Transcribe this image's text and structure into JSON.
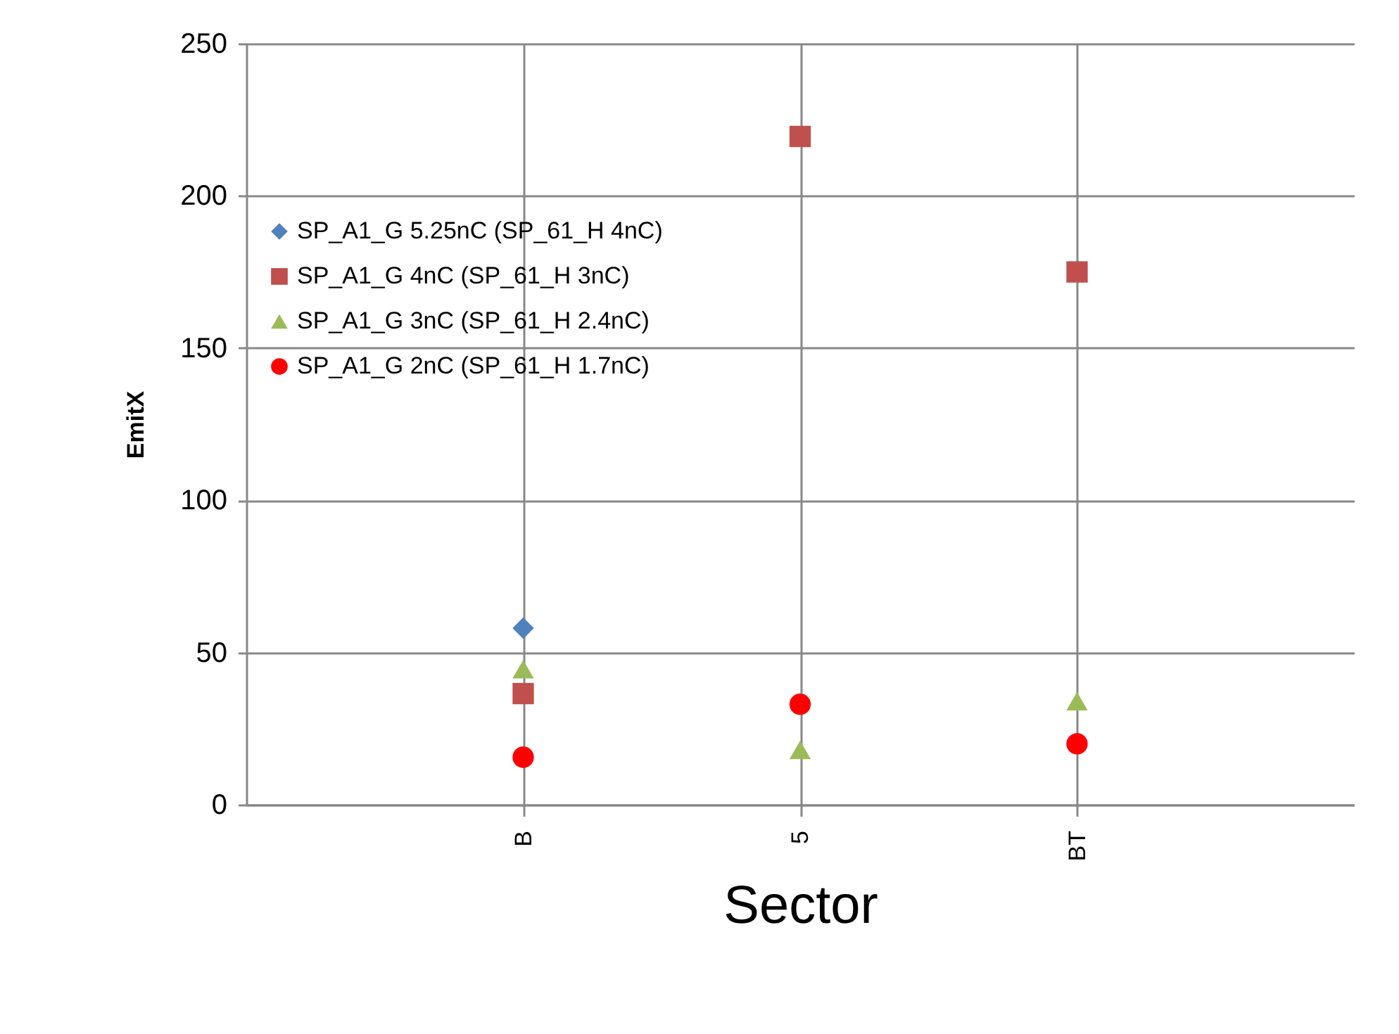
{
  "chart_data": {
    "type": "scatter",
    "xlabel": "Sector",
    "ylabel": "EmitX",
    "categories": [
      "B",
      "5",
      "BT"
    ],
    "series": [
      {
        "name": "SP_A1_G 5.25nC (SP_61_H 4nC)",
        "color": "#4f81bd",
        "marker": "diamond",
        "values": [
          58,
          null,
          null
        ]
      },
      {
        "name": "SP_A1_G 4nC (SP_61_H 3nC)",
        "color": "#c0504d",
        "marker": "square",
        "values": [
          36.5,
          219.5,
          175
        ]
      },
      {
        "name": "SP_A1_G 3nC (SP_61_H 2.4nC)",
        "color": "#9bbb59",
        "marker": "triangle",
        "values": [
          44.5,
          18,
          34
        ]
      },
      {
        "name": "SP_A1_G 2nC (SP_61_H 1.7nC)",
        "color": "#ff0000",
        "marker": "circle",
        "values": [
          15.6,
          33,
          20
        ]
      }
    ],
    "ylim": [
      0,
      250
    ],
    "yticks": [
      0,
      50,
      100,
      150,
      200,
      250
    ],
    "grid": true,
    "legend": "top left"
  }
}
